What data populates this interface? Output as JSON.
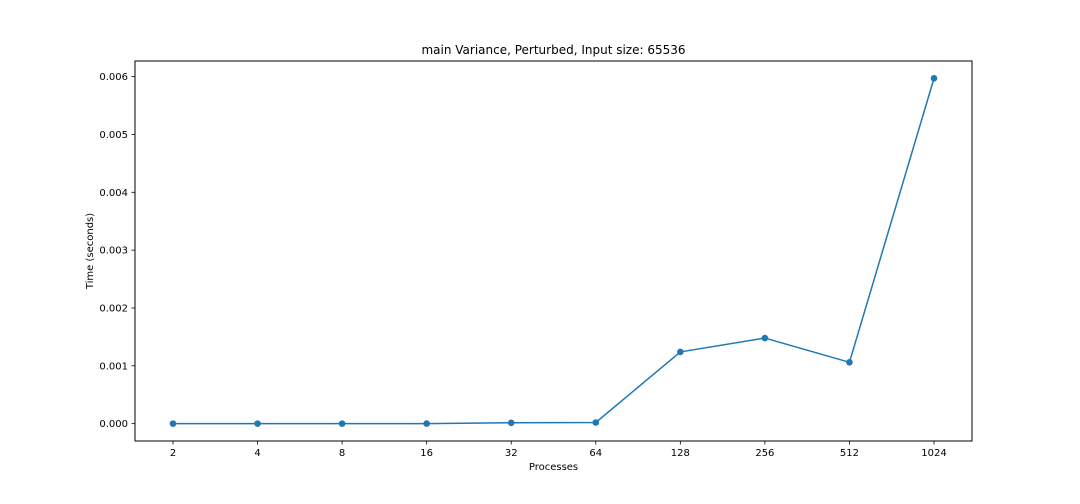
{
  "chart_data": {
    "type": "line",
    "title": "main Variance, Perturbed, Input size: 65536",
    "xlabel": "Processes",
    "ylabel": "Time (seconds)",
    "x_scale": "categorical",
    "categories": [
      "2",
      "4",
      "8",
      "16",
      "32",
      "64",
      "128",
      "256",
      "512",
      "1024"
    ],
    "series": [
      {
        "color": "#1f77b4",
        "marker": "circle",
        "values": [
          5e-07,
          5e-07,
          6e-07,
          1e-06,
          1.5e-05,
          2e-05,
          0.00124,
          0.00148,
          0.00106,
          0.00597
        ]
      }
    ],
    "yticks": [
      "0.000",
      "0.001",
      "0.002",
      "0.003",
      "0.004",
      "0.005",
      "0.006"
    ],
    "ylim": [
      -0.0003,
      0.00627
    ],
    "grid": false,
    "legend": "none"
  }
}
